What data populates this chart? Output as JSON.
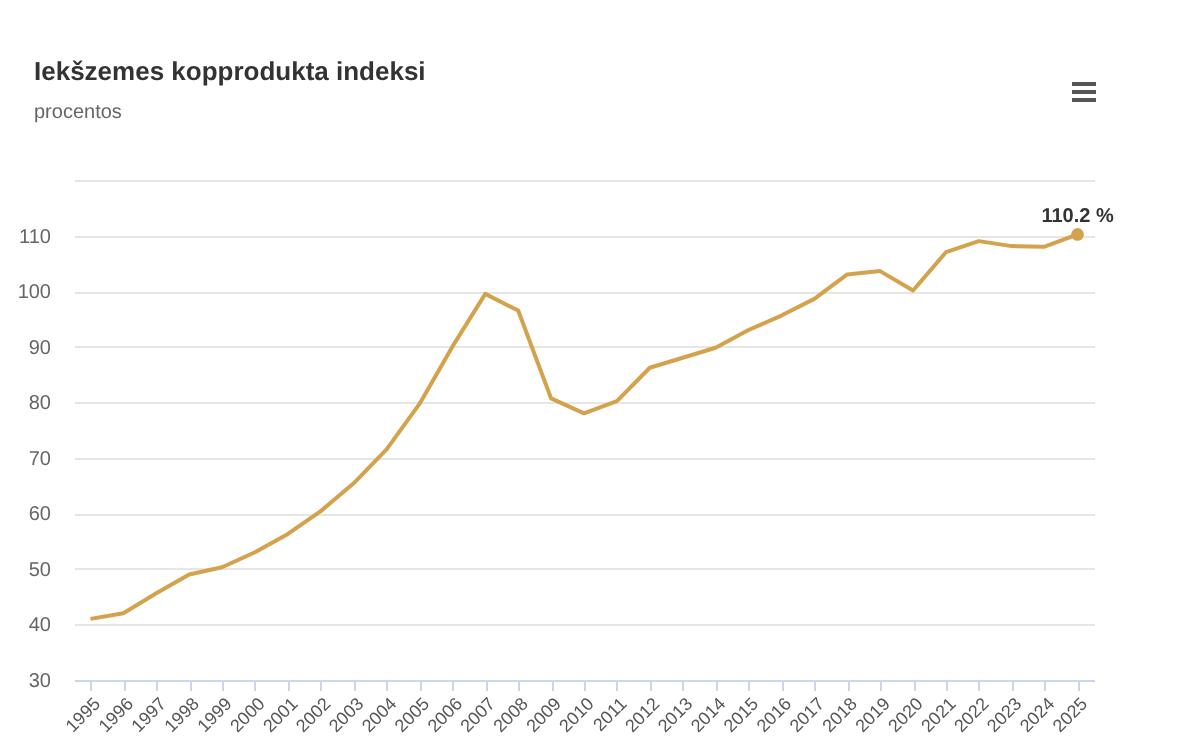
{
  "chart_data": {
    "type": "line",
    "title": "Iekšzemes kopprodukta indeksi",
    "subtitle": "procentos",
    "categories": [
      "1995",
      "1996",
      "1997",
      "1998",
      "1999",
      "2000",
      "2001",
      "2002",
      "2003",
      "2004",
      "2005",
      "2006",
      "2007",
      "2008",
      "2009",
      "2010",
      "2011",
      "2012",
      "2013",
      "2014",
      "2015",
      "2016",
      "2017",
      "2018",
      "2019",
      "2020",
      "2021",
      "2022",
      "2023",
      "2024",
      "2025"
    ],
    "series": [
      {
        "color": "#d4a24c",
        "values": [
          41,
          42,
          45.6,
          49,
          50.3,
          53,
          56.3,
          60.4,
          65.4,
          71.5,
          79.7,
          90,
          99.5,
          96.5,
          80.7,
          78,
          80.2,
          86.2,
          88,
          89.8,
          93,
          95.6,
          98.6,
          103,
          103.6,
          100.1,
          107,
          109,
          108.1,
          108,
          110.2
        ]
      }
    ],
    "ylim": [
      30,
      120
    ],
    "yticks": [
      30,
      40,
      50,
      60,
      70,
      80,
      90,
      100,
      110,
      {
        "value": 120,
        "label": null
      }
    ],
    "grid": "y",
    "marker": "none",
    "line_style": "solid",
    "annotations": [
      {
        "text": "110.2 %",
        "x": "2025",
        "y": 110.2
      }
    ]
  }
}
